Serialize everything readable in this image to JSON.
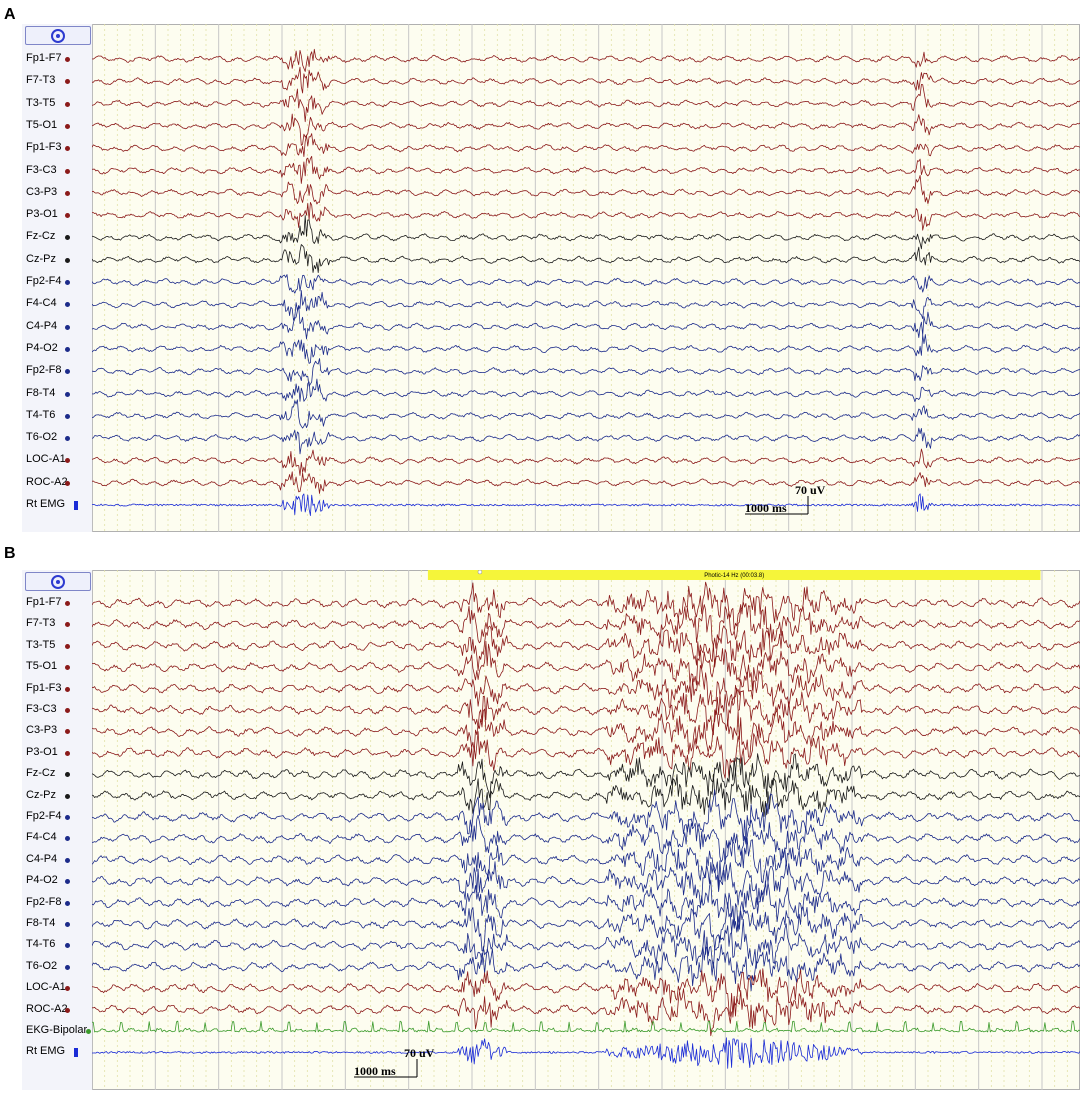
{
  "chart_data": [
    {
      "type": "line",
      "panel": "A",
      "channels": [
        {
          "name": "Fp1-F7",
          "color": "#8b1a1a"
        },
        {
          "name": "F7-T3",
          "color": "#8b1a1a"
        },
        {
          "name": "T3-T5",
          "color": "#8b1a1a"
        },
        {
          "name": "T5-O1",
          "color": "#8b1a1a"
        },
        {
          "name": "Fp1-F3",
          "color": "#8b1a1a"
        },
        {
          "name": "F3-C3",
          "color": "#8b1a1a"
        },
        {
          "name": "C3-P3",
          "color": "#8b1a1a"
        },
        {
          "name": "P3-O1",
          "color": "#8b1a1a"
        },
        {
          "name": "Fz-Cz",
          "color": "#1a1a1a"
        },
        {
          "name": "Cz-Pz",
          "color": "#1a1a1a"
        },
        {
          "name": "Fp2-F4",
          "color": "#1c2b8a"
        },
        {
          "name": "F4-C4",
          "color": "#1c2b8a"
        },
        {
          "name": "C4-P4",
          "color": "#1c2b8a"
        },
        {
          "name": "P4-O2",
          "color": "#1c2b8a"
        },
        {
          "name": "Fp2-F8",
          "color": "#1c2b8a"
        },
        {
          "name": "F8-T4",
          "color": "#1c2b8a"
        },
        {
          "name": "T4-T6",
          "color": "#1c2b8a"
        },
        {
          "name": "T6-O2",
          "color": "#1c2b8a"
        },
        {
          "name": "LOC-A1",
          "color": "#8b1a1a"
        },
        {
          "name": "ROC-A2",
          "color": "#8b1a1a"
        },
        {
          "name": "Rt EMG",
          "color": "#1a2bd6",
          "marker": "bar"
        }
      ],
      "scale": {
        "time": "1000 ms",
        "amplitude": "70 uV"
      },
      "bursts": [
        {
          "start": 0.19,
          "end": 0.24
        },
        {
          "start": 0.83,
          "end": 0.85
        }
      ],
      "grid": true
    },
    {
      "type": "line",
      "panel": "B",
      "channels": [
        {
          "name": "Fp1-F7",
          "color": "#8b1a1a"
        },
        {
          "name": "F7-T3",
          "color": "#8b1a1a"
        },
        {
          "name": "T3-T5",
          "color": "#8b1a1a"
        },
        {
          "name": "T5-O1",
          "color": "#8b1a1a"
        },
        {
          "name": "Fp1-F3",
          "color": "#8b1a1a"
        },
        {
          "name": "F3-C3",
          "color": "#8b1a1a"
        },
        {
          "name": "C3-P3",
          "color": "#8b1a1a"
        },
        {
          "name": "P3-O1",
          "color": "#8b1a1a"
        },
        {
          "name": "Fz-Cz",
          "color": "#1a1a1a"
        },
        {
          "name": "Cz-Pz",
          "color": "#1a1a1a"
        },
        {
          "name": "Fp2-F4",
          "color": "#1c2b8a"
        },
        {
          "name": "F4-C4",
          "color": "#1c2b8a"
        },
        {
          "name": "C4-P4",
          "color": "#1c2b8a"
        },
        {
          "name": "P4-O2",
          "color": "#1c2b8a"
        },
        {
          "name": "Fp2-F8",
          "color": "#1c2b8a"
        },
        {
          "name": "F8-T4",
          "color": "#1c2b8a"
        },
        {
          "name": "T4-T6",
          "color": "#1c2b8a"
        },
        {
          "name": "T6-O2",
          "color": "#1c2b8a"
        },
        {
          "name": "LOC-A1",
          "color": "#8b1a1a"
        },
        {
          "name": "ROC-A2",
          "color": "#8b1a1a"
        },
        {
          "name": "EKG-Bipolar",
          "color": "#3a9a2a"
        },
        {
          "name": "Rt EMG",
          "color": "#1a2bd6",
          "marker": "bar"
        }
      ],
      "scale": {
        "time": "1000 ms",
        "amplitude": "70 uV"
      },
      "annotation": {
        "label": "Photic-14 Hz (00:03.8)",
        "start": 0.34,
        "end": 0.96,
        "color": "#f5f53a"
      },
      "bursts": [
        {
          "start": 0.37,
          "end": 0.42
        },
        {
          "start": 0.52,
          "end": 0.78
        }
      ],
      "grid": true
    }
  ],
  "panels": {
    "a": {
      "letter": "A"
    },
    "b": {
      "letter": "B"
    }
  },
  "colors": {
    "trace_bg": "#fdfdf0",
    "grid_major": "#c8c8c8",
    "grid_minor": "#e2e2a8",
    "photic_bar": "#f5f53a"
  },
  "icons": {
    "top_button": "target-icon"
  }
}
